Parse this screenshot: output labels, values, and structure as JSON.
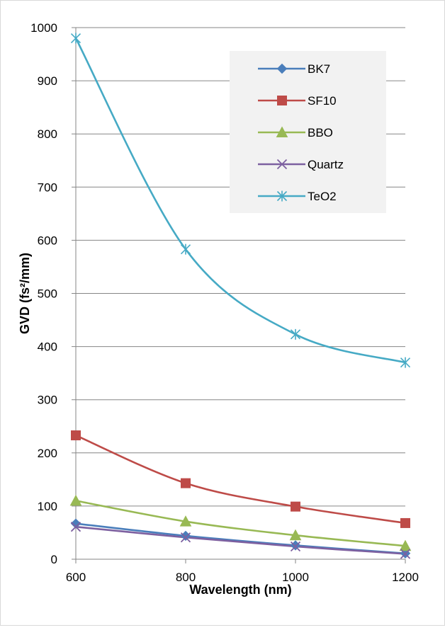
{
  "chart_data": {
    "type": "line",
    "title": "",
    "xlabel": "Wavelength (nm)",
    "ylabel": "GVD (fs²/mm)",
    "x": [
      600,
      800,
      1000,
      1200
    ],
    "x_ticks": [
      "600",
      "800",
      "1000",
      "1200"
    ],
    "y_ticks": [
      "0",
      "100",
      "200",
      "300",
      "400",
      "500",
      "600",
      "700",
      "800",
      "900",
      "1000"
    ],
    "xlim": [
      600,
      1200
    ],
    "ylim": [
      0,
      1000
    ],
    "y_step": 100,
    "grid": "horizontal",
    "smoothed": true,
    "legend_position": "top-right",
    "legend_background": "#f2f2f2",
    "series": [
      {
        "name": "BK7",
        "values": [
          67,
          44,
          26,
          11
        ],
        "color": "#4a7ebb",
        "marker": "diamond"
      },
      {
        "name": "SF10",
        "values": [
          233,
          143,
          99,
          68
        ],
        "color": "#be4b48",
        "marker": "square"
      },
      {
        "name": "BBO",
        "values": [
          110,
          71,
          45,
          25
        ],
        "color": "#98b954",
        "marker": "triangle"
      },
      {
        "name": "Quartz",
        "values": [
          61,
          41,
          24,
          10
        ],
        "color": "#7d60a0",
        "marker": "x"
      },
      {
        "name": "TeO2",
        "values": [
          980,
          583,
          423,
          370
        ],
        "color": "#46aac5",
        "marker": "star"
      }
    ]
  }
}
